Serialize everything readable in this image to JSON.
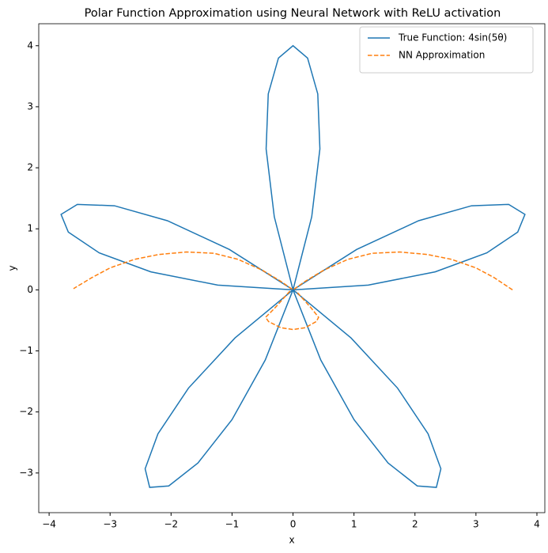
{
  "chart_data": {
    "type": "line",
    "title": "Polar Function Approximation using Neural Network with ReLU activation",
    "xlabel": "x",
    "ylabel": "y",
    "xlim": [
      -4.17,
      4.13
    ],
    "ylim": [
      -3.65,
      4.36
    ],
    "xticks": [
      {
        "value": -4,
        "label": "−4"
      },
      {
        "value": -3,
        "label": "−3"
      },
      {
        "value": -2,
        "label": "−2"
      },
      {
        "value": -1,
        "label": "−1"
      },
      0,
      1,
      2,
      3,
      4
    ],
    "yticks": [
      {
        "value": -3,
        "label": "−3"
      },
      {
        "value": -2,
        "label": "−2"
      },
      {
        "value": -1,
        "label": "−1"
      },
      0,
      1,
      2,
      3,
      4
    ],
    "grid": false,
    "legend": "upper right",
    "series": [
      {
        "name": "True Function: 4sin(5θ)",
        "color": "#1f77b4",
        "linestyle": "solid",
        "x": [
          0,
          1.234,
          2.332,
          3.179,
          3.685,
          3.804,
          3.537,
          2.928,
          2.06,
          1.044,
          0,
          -0.952,
          -1.714,
          -2.215,
          -2.425,
          -2.351,
          -2.038,
          -1.559,
          -1.001,
          -0.455,
          0,
          0.307,
          0.441,
          0.406,
          0.239,
          0,
          -0.239,
          -0.406,
          -0.441,
          -0.307,
          0,
          0.455,
          1.001,
          1.559,
          2.038,
          2.351,
          2.425,
          2.215,
          1.714,
          0.952,
          0,
          -1.044,
          -2.06,
          -2.928,
          -3.537,
          -3.804,
          -3.685,
          -3.179,
          -2.332,
          -1.234,
          0
        ],
        "y": [
          0,
          0.078,
          0.295,
          0.606,
          0.946,
          1.236,
          1.4,
          1.378,
          1.133,
          0.662,
          0,
          -0.788,
          -1.609,
          -2.359,
          -2.931,
          -3.236,
          -3.212,
          -2.836,
          -2.127,
          -1.149,
          0,
          1.197,
          2.309,
          3.21,
          3.797,
          4,
          3.797,
          3.21,
          2.309,
          1.197,
          0,
          -1.149,
          -2.127,
          -2.836,
          -3.212,
          -3.236,
          -2.931,
          -2.359,
          -1.609,
          -0.788,
          0,
          0.662,
          1.133,
          1.378,
          1.4,
          1.236,
          0.946,
          0.606,
          0.295,
          0.078,
          0
        ]
      },
      {
        "name": "NN Approximation",
        "color": "#ff7f0e",
        "linestyle": "dashed",
        "x": [
          3.6,
          3.3,
          3.0,
          2.6,
          2.2,
          1.75,
          1.3,
          0.9,
          0.5,
          0.2,
          0,
          -0.2,
          -0.5,
          -0.9,
          -1.3,
          -1.75,
          -2.2,
          -2.6,
          -3.0,
          -3.3,
          -3.6,
          null,
          -0.05,
          -0.3,
          -0.45,
          -0.4,
          -0.2,
          0,
          0.2,
          0.38,
          0.42,
          0.3,
          0.05
        ],
        "y": [
          0,
          0.2,
          0.36,
          0.5,
          0.58,
          0.62,
          0.6,
          0.5,
          0.32,
          0.14,
          0,
          0.14,
          0.32,
          0.5,
          0.6,
          0.62,
          0.58,
          0.5,
          0.36,
          0.2,
          0.02,
          null,
          -0.02,
          -0.3,
          -0.45,
          -0.52,
          -0.62,
          -0.65,
          -0.62,
          -0.52,
          -0.45,
          -0.3,
          -0.02
        ]
      }
    ]
  }
}
